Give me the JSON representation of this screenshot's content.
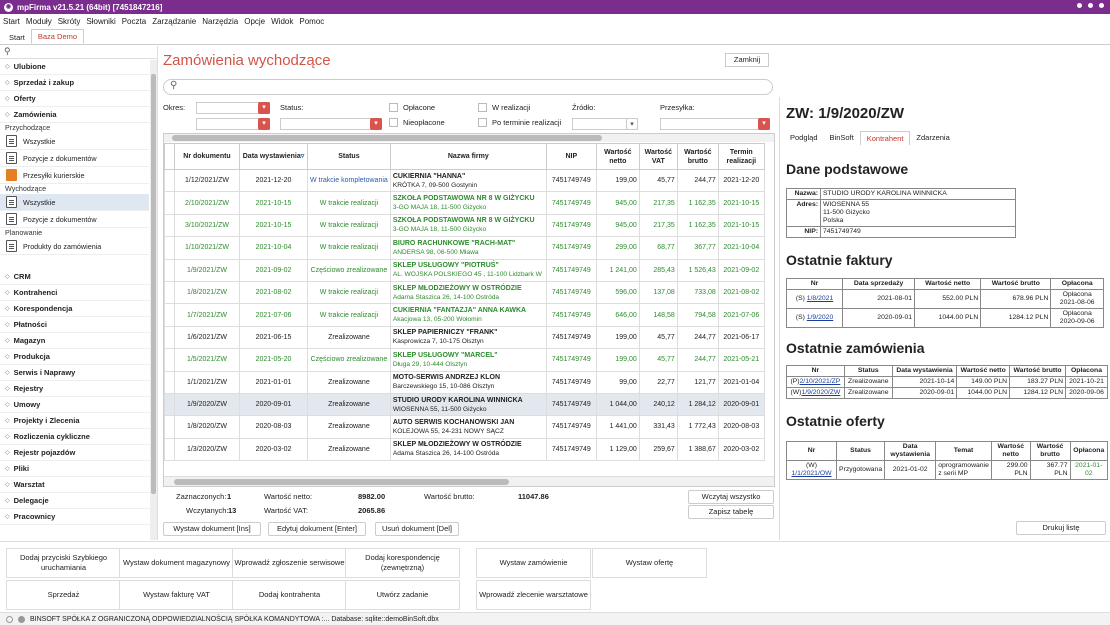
{
  "window": {
    "title": "mpFirma v21.5.21 (64bit) [7451847216]"
  },
  "menu": [
    "Start",
    "Moduły",
    "Skróty",
    "Słowniki",
    "Poczta",
    "Zarządzanie",
    "Narzędzia",
    "Opcje",
    "Widok",
    "Pomoc"
  ],
  "tabs": [
    "Start",
    "Baza Demo"
  ],
  "sidebar": {
    "search_icon": "search-icon",
    "groups_top": [
      "Ulubione",
      "Sprzedaż i zakup",
      "Oferty",
      "Zamówienia"
    ],
    "sec_przychodzace": "Przychodzące",
    "items_przychodzace": [
      "Wszystkie",
      "Pozycje z dokumentów",
      "Przesyłki kurierskie"
    ],
    "sec_wychodzace": "Wychodzące",
    "items_wychodzace": [
      "Wszystkie",
      "Pozycje z dokumentów"
    ],
    "sec_planowanie": "Planowanie",
    "items_planowanie": [
      "Produkty do zamówienia"
    ],
    "groups_bottom": [
      "CRM",
      "Kontrahenci",
      "Korespondencja",
      "Płatności",
      "Magazyn",
      "Produkcja",
      "Serwis i Naprawy",
      "Rejestry",
      "Umowy",
      "Projekty i Zlecenia",
      "Rozliczenia cykliczne",
      "Rejestr pojazdów",
      "Pliki",
      "Warsztat",
      "Delegacje",
      "Pracownicy"
    ]
  },
  "main": {
    "title": "Zamówienia wychodzące",
    "close_label": "Zamknij",
    "filters": {
      "okres": "Okres:",
      "status": "Status:",
      "oplacone": "Opłacone",
      "nieoplacone": "Nieopłacone",
      "w_realizacji": "W realizacji",
      "po_terminie": "Po terminie realizacji",
      "zrodlo": "Źródło:",
      "przesylka": "Przesyłka:"
    },
    "columns": [
      "Nr dokumentu",
      "Data wystawienia",
      "Status",
      "Nazwa firmy",
      "NIP",
      "Wartość netto",
      "Wartość VAT",
      "Wartość brutto",
      "Termin realizacji"
    ],
    "rows": [
      {
        "nr": "1/12/2021/ZW",
        "data": "2021-12-20",
        "status": "W trakcie kompletowania",
        "firma": "CUKIERNIA \"HANNA\"",
        "adres": "KRÓTKA 7, 09-500 Gostynin",
        "nip": "7451749749",
        "netto": "199,00",
        "vat": "45,77",
        "brutto": "244,77",
        "termin": "2021-12-20",
        "style": "blue"
      },
      {
        "nr": "2/10/2021/ZW",
        "data": "2021-10-15",
        "status": "W trakcie realizacji",
        "firma": "SZKOŁA PODSTAWOWA NR 8 W GIŻYCKU",
        "adres": "3-GO MAJA 18, 11-500 Giżycko",
        "nip": "7451749749",
        "netto": "945,00",
        "vat": "217,35",
        "brutto": "1 162,35",
        "termin": "2021-10-15",
        "style": "green"
      },
      {
        "nr": "3/10/2021/ZW",
        "data": "2021-10-15",
        "status": "W trakcie realizacji",
        "firma": "SZKOŁA PODSTAWOWA NR 8 W GIŻYCKU",
        "adres": "3-GO MAJA 18, 11-500 Giżycko",
        "nip": "7451749749",
        "netto": "945,00",
        "vat": "217,35",
        "brutto": "1 162,35",
        "termin": "2021-10-15",
        "style": "green"
      },
      {
        "nr": "1/10/2021/ZW",
        "data": "2021-10-04",
        "status": "W trakcie realizacji",
        "firma": "BIURO RACHUNKOWE \"RACH-MAT\"",
        "adres": "ANDERSA 98, 06-500 Mława",
        "nip": "7451749749",
        "netto": "299,00",
        "vat": "68,77",
        "brutto": "367,77",
        "termin": "2021-10-04",
        "style": "green"
      },
      {
        "nr": "1/9/2021/ZW",
        "data": "2021-09-02",
        "status": "Częściowo zrealizowane",
        "firma": "SKLEP USŁUGOWY \"PIOTRUŚ\"",
        "adres": "AL. WOJSKA POLSKIEGO 45 , 11-100 Lidzbark W",
        "nip": "7451749749",
        "netto": "1 241,00",
        "vat": "285,43",
        "brutto": "1 526,43",
        "termin": "2021-09-02",
        "style": "green-blue"
      },
      {
        "nr": "1/8/2021/ZW",
        "data": "2021-08-02",
        "status": "W trakcie realizacji",
        "firma": "SKLEP MŁODZIEŻOWY W OSTRÓDZIE",
        "adres": "Adama Staszica 26, 14-100 Ostróda",
        "nip": "7451749749",
        "netto": "596,00",
        "vat": "137,08",
        "brutto": "733,08",
        "termin": "2021-08-02",
        "style": "green"
      },
      {
        "nr": "1/7/2021/ZW",
        "data": "2021-07-06",
        "status": "W trakcie realizacji",
        "firma": "CUKIERNIA \"FANTAZJA\" ANNA KAWKA",
        "adres": "Akacjowa 13, 05-200 Wołomin",
        "nip": "7451749749",
        "netto": "646,00",
        "vat": "148,58",
        "brutto": "794,58",
        "termin": "2021-07-06",
        "style": "green"
      },
      {
        "nr": "1/6/2021/ZW",
        "data": "2021-06-15",
        "status": "Zrealizowane",
        "firma": "SKLEP PAPIERNICZY \"FRANK\"",
        "adres": "Kasprowicza 7, 10-175 Olsztyn",
        "nip": "7451749749",
        "netto": "199,00",
        "vat": "45,77",
        "brutto": "244,77",
        "termin": "2021-06-17",
        "style": ""
      },
      {
        "nr": "1/5/2021/ZW",
        "data": "2021-05-20",
        "status": "Częściowo zrealizowane",
        "firma": "SKLEP USŁUGOWY \"MARCEL\"",
        "adres": "Długa 29, 10-444 Olsztyn",
        "nip": "7451749749",
        "netto": "199,00",
        "vat": "45,77",
        "brutto": "244,77",
        "termin": "2021-05-21",
        "style": "green-blue"
      },
      {
        "nr": "1/1/2021/ZW",
        "data": "2021-01-01",
        "status": "Zrealizowane",
        "firma": "MOTO-SERWIS ANDRZEJ KLON",
        "adres": "Barczewskiego 15, 10-086 Olsztyn",
        "nip": "7451749749",
        "netto": "99,00",
        "vat": "22,77",
        "brutto": "121,77",
        "termin": "2021-01-04",
        "style": ""
      },
      {
        "nr": "1/9/2020/ZW",
        "data": "2020-09-01",
        "status": "Zrealizowane",
        "firma": "STUDIO URODY KAROLINA WINNICKA",
        "adres": "WIOSENNA 55, 11-500 Giżycko",
        "nip": "7451749749",
        "netto": "1 044,00",
        "vat": "240,12",
        "brutto": "1 284,12",
        "termin": "2020-09-01",
        "style": "sel"
      },
      {
        "nr": "1/8/2020/ZW",
        "data": "2020-08-03",
        "status": "Zrealizowane",
        "firma": "AUTO SERWIS KOCHANOWSKI JAN",
        "adres": "KOLEJOWA 55, 24-231 NOWY SĄCZ",
        "nip": "7451749749",
        "netto": "1 441,00",
        "vat": "331,43",
        "brutto": "1 772,43",
        "termin": "2020-08-03",
        "style": ""
      },
      {
        "nr": "1/3/2020/ZW",
        "data": "2020-03-02",
        "status": "Zrealizowane",
        "firma": "SKLEP MŁODZIEŻOWY W OSTRÓDZIE",
        "adres": "Adama Staszica 26, 14-100 Ostróda",
        "nip": "7451749749",
        "netto": "1 129,00",
        "vat": "259,67",
        "brutto": "1 388,67",
        "termin": "2020-03-02",
        "style": ""
      }
    ],
    "summary": {
      "zaznaczonych_label": "Zaznaczonych:",
      "zaznaczonych": "1",
      "wczytanych_label": "Wczytanych:",
      "wczytanych": "13",
      "netto_label": "Wartość netto:",
      "netto": "8982.00",
      "vat_label": "Wartość VAT:",
      "vat": "2065.86",
      "brutto_label": "Wartość brutto:",
      "brutto": "11047.86",
      "wczytaj": "Wczytaj wszystko",
      "zapisz": "Zapisz tabelę"
    },
    "actions": [
      "Wystaw dokument [Ins]",
      "Edytuj dokument [Enter]",
      "Usuń dokument [Del]"
    ],
    "print_label": "Drukuj listę"
  },
  "detail": {
    "title": "ZW: 1/9/2020/ZW",
    "tabs": [
      "Podgląd",
      "BinSoft",
      "Kontrahent",
      "Zdarzenia"
    ],
    "dane_title": "Dane podstawowe",
    "nazwa_label": "Nazwa:",
    "nazwa": "STUDIO URODY KAROLINA WINNICKA",
    "adres_label": "Adres:",
    "adres1": "WIOSENNA 55",
    "adres2": "11-500 Giżycko",
    "adres3": "Polska",
    "nip_label": "NIP:",
    "nip": "7451749749",
    "faktury_title": "Ostatnie faktury",
    "faktury_cols": [
      "Nr",
      "Data sprzedaży",
      "Wartość netto",
      "Wartość brutto",
      "Opłacona"
    ],
    "faktury": [
      {
        "pre": "(S)",
        "nr": "1/8/2021",
        "data": "2021-08-01",
        "netto": "552.00 PLN",
        "brutto": "678.96 PLN",
        "opl1": "Opłacona",
        "opl2": "2021-08-06"
      },
      {
        "pre": "(S)",
        "nr": "1/9/2020",
        "data": "2020-09-01",
        "netto": "1044.00 PLN",
        "brutto": "1284.12 PLN",
        "opl1": "Opłacona",
        "opl2": "2020-09-06"
      }
    ],
    "zamowienia_title": "Ostatnie zamówienia",
    "zamowienia_cols": [
      "Nr",
      "Status",
      "Data wystawienia",
      "Wartość netto",
      "Wartość brutto",
      "Opłacona"
    ],
    "zamowienia": [
      {
        "pre": "(P)",
        "nr": "2/10/2021/ZP",
        "status": "Zrealizowane",
        "data": "2021-10-14",
        "netto": "149.00 PLN",
        "brutto": "183.27 PLN",
        "opl": "2021-10-21"
      },
      {
        "pre": "(W)",
        "nr": "1/9/2020/ZW",
        "status": "Zrealizowane",
        "data": "2020-09-01",
        "netto": "1044.00 PLN",
        "brutto": "1284.12 PLN",
        "opl": "2020-09-06"
      }
    ],
    "oferty_title": "Ostatnie oferty",
    "oferty_cols": [
      "Nr",
      "Status",
      "Data wystawienia",
      "Temat",
      "Wartość netto",
      "Wartość brutto",
      "Opłacona"
    ],
    "oferty": [
      {
        "pre": "(W)",
        "nr": "1/1/2021/OW",
        "status": "Przygotowana",
        "data": "2021-01-02",
        "temat1": "oprogramowanie",
        "temat2": "z serii MP",
        "netto1": "299.00",
        "netto2": "PLN",
        "brutto1": "367.77",
        "brutto2": "PLN",
        "opl": "2021-01-02"
      }
    ]
  },
  "quick": [
    "Dodaj przyciski Szybkiego uruchamiania",
    "Wystaw dokument magazynowy",
    "Wprowadź zgłoszenie serwisowe",
    "Dodaj korespondencję (zewnętrzną)",
    "Wystaw zamówienie",
    "Wystaw ofertę",
    "Sprzedaż",
    "Wystaw fakturę VAT",
    "Dodaj kontrahenta",
    "Utwórz zadanie",
    "Wprowadź zlecenie warsztatowe"
  ],
  "status": {
    "text": "BINSOFT SPÓŁKA Z OGRANICZONĄ ODPOWIEDZIALNOŚCIĄ SPÓŁKA KOMANDYTOWA :... Database: sqlite::demoBinSoft.dbx"
  },
  "colors": {
    "title_bar": "#7b2d8e",
    "accent": "#d35447",
    "green": "#2e8b2e",
    "blue": "#2a5db0"
  }
}
